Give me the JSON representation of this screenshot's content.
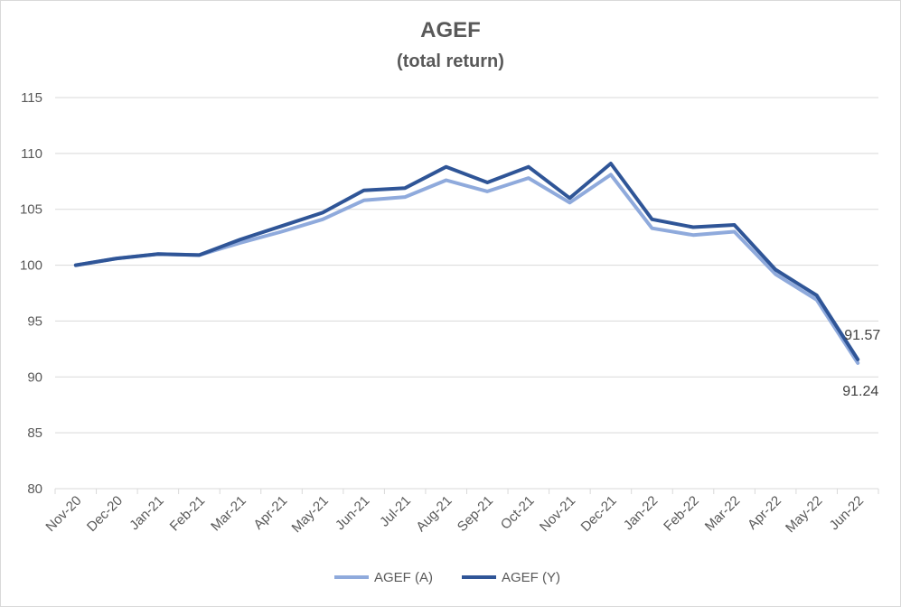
{
  "chart_data": {
    "type": "line",
    "title": "AGEF",
    "subtitle": "(total return)",
    "xlabel": "",
    "ylabel": "",
    "ylim": [
      80,
      115
    ],
    "yticks": [
      80,
      85,
      90,
      95,
      100,
      105,
      110,
      115
    ],
    "grid": true,
    "legend_position": "bottom",
    "categories": [
      "Nov-20",
      "Dec-20",
      "Jan-21",
      "Feb-21",
      "Mar-21",
      "Apr-21",
      "May-21",
      "Jun-21",
      "Jul-21",
      "Aug-21",
      "Sep-21",
      "Oct-21",
      "Nov-21",
      "Dec-21",
      "Jan-22",
      "Feb-22",
      "Mar-22",
      "Apr-22",
      "May-22",
      "Jun-22"
    ],
    "series": [
      {
        "name": "AGEF (A)",
        "color": "#8faadc",
        "values": [
          100.0,
          100.6,
          101.0,
          100.9,
          102.0,
          103.0,
          104.1,
          105.8,
          106.1,
          107.6,
          106.6,
          107.8,
          105.6,
          108.1,
          103.3,
          102.7,
          103.0,
          99.2,
          96.9,
          91.24
        ],
        "end_label": "91.24"
      },
      {
        "name": "AGEF (Y)",
        "color": "#2f5597",
        "values": [
          100.0,
          100.6,
          101.0,
          100.9,
          102.3,
          103.5,
          104.7,
          106.7,
          106.9,
          108.8,
          107.4,
          108.8,
          106.0,
          109.1,
          104.1,
          103.4,
          103.6,
          99.6,
          97.3,
          91.57
        ],
        "end_label": "91.57"
      }
    ]
  }
}
